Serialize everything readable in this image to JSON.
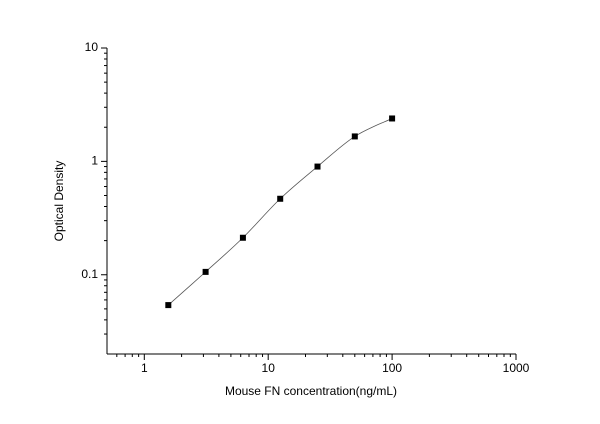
{
  "chart_data": {
    "type": "scatter",
    "x_label": "Mouse FN concentration(ng/mL)",
    "y_label": "Optical Density",
    "x": [
      1.5625,
      3.125,
      6.25,
      12.5,
      25,
      50,
      100
    ],
    "values": [
      0.054,
      0.106,
      0.212,
      0.468,
      0.9,
      1.66,
      2.39
    ],
    "color": "#000000",
    "line_color": "#555555",
    "xlim": [
      0.5,
      1000
    ],
    "xticks": [
      1,
      10,
      100,
      1000
    ],
    "xscale": "log",
    "ylim": [
      0.02,
      10
    ],
    "yticks": [
      0.1,
      1,
      10
    ],
    "yscale": "log",
    "grid": false
  }
}
